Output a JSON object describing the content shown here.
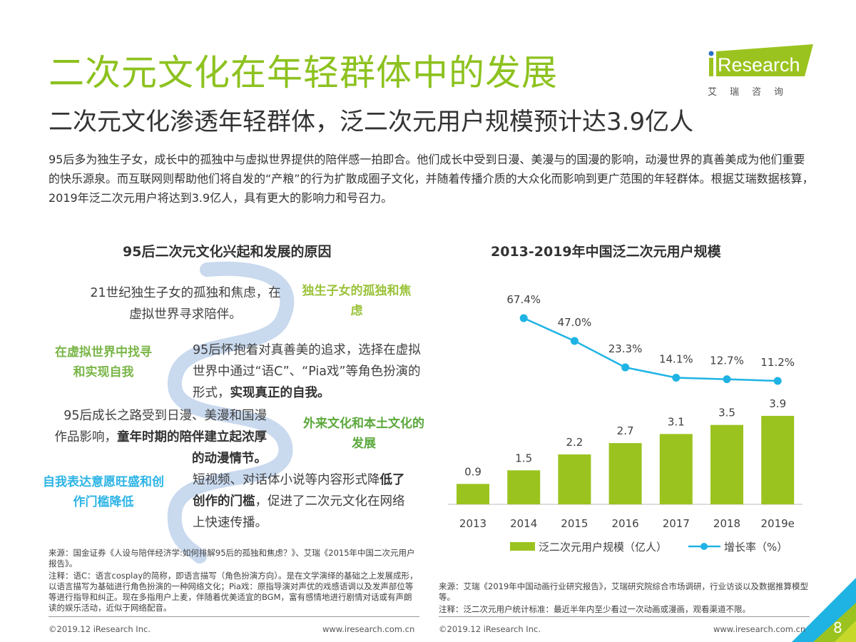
{
  "logo": {
    "brand": "iResearch",
    "brand_cn": "艾瑞咨询"
  },
  "header": {
    "title": "二次元文化在年轻群体中的发展",
    "subtitle": "二次元文化渗透年轻群体，泛二次元用户规模预计达3.9亿人"
  },
  "intro": "95后多为独生子女，成长中的孤独中与虚拟世界提供的陪伴感一拍即合。他们成长中受到日漫、美漫与的国漫的影响，动漫世界的真善美成为他们重要的快乐源泉。而互联网则帮助他们将自发的“产粮”的行为扩散成圈子文化，并随着传播介质的大众化而影响到更广范围的年轻群体。根据艾瑞数据核算，2019年泛二次元用户将达到3.9亿人，具有更大的影响力和号召力。",
  "left": {
    "title": "95后二次元文化兴起和发展的原因",
    "items": [
      {
        "label": "独生子女的孤独和焦虑",
        "label_color": "#9bc33a",
        "text": "21世纪独生子女的孤独和焦虑，在虚拟世界寻求陪伴。",
        "bold": ""
      },
      {
        "label": "在虚拟世界中找寻和实现自我",
        "label_color": "#7ab648",
        "text": "95后怀抱着对真善美的追求，选择在虚拟世界中通过“语C”、“Pia戏”等角色扮演的形式，",
        "bold": "实现真正的自我。"
      },
      {
        "label": "外来文化和本土文化的发展",
        "label_color": "#5aa83c",
        "text": "95后成长之路受到日漫、美漫和国漫作品影响，",
        "bold": "童年时期的陪伴建立起浓厚的动漫情节。"
      },
      {
        "label": "自我表达意愿旺盛和创作门槛降低",
        "label_color": "#2db4e6",
        "text_pre": "短视频、对话体小说等内容形式降",
        "bold": "低了创作的门槛",
        "text": "，促进了二次元文化在网络上快速传播。"
      }
    ],
    "source": "来源：国金证券《人设与陪伴经济学:如何排解95后的孤独和焦虑？》、艾瑞《2015年中国二次元用户报告》。",
    "note": "注释：语C：语言cosplay的简称，即语言描写（角色扮演方向）。是在文学演绎的基础之上发展成形，以语言描写为基础进行角色扮演的一种网络文化；Pia戏：原指导演对声优的戏感语调以及发声部位等等进行指导和纠正。现在多指用户上麦，伴随着优美适宜的BGM，富有感情地进行剧情对话或有声朗读的娱乐活动，近似于网络配音。"
  },
  "right": {
    "source": "来源：艾瑞《2019年中国动画行业研究报告》，艾瑞研究院综合市场调研，行业访谈以及数据推算模型等。",
    "note": "注释：泛二次元用户统计标准：最近半年内至少看过一次动画或漫画，观看渠道不限。"
  },
  "chart_data": {
    "type": "bar+line",
    "title": "2013-2019年中国泛二次元用户规模",
    "categories": [
      "2013",
      "2014",
      "2015",
      "2016",
      "2017",
      "2018",
      "2019e"
    ],
    "series": [
      {
        "name": "泛二次元用户规模（亿人）",
        "type": "bar",
        "color": "#9bc31f",
        "values": [
          0.9,
          1.5,
          2.2,
          2.7,
          3.1,
          3.5,
          3.9
        ],
        "labels": [
          "0.9",
          "1.5",
          "2.2",
          "2.7",
          "3.1",
          "3.5",
          "3.9"
        ]
      },
      {
        "name": "增长率（%）",
        "type": "line",
        "color": "#1fb3e4",
        "values": [
          null,
          67.4,
          47.0,
          23.3,
          14.1,
          12.7,
          11.2
        ],
        "labels": [
          "",
          "67.4%",
          "47.0%",
          "23.3%",
          "14.1%",
          "12.7%",
          "11.2%"
        ]
      }
    ],
    "legend": "bottom",
    "grid": false
  },
  "footer": {
    "copyright": "©2019.12 iResearch Inc.",
    "url": "www.iresearch.com.cn",
    "page": "8"
  },
  "colors": {
    "brand_green": "#8dc21f",
    "accent_blue": "#1fb3e4",
    "wave": "#c9d9ee"
  }
}
